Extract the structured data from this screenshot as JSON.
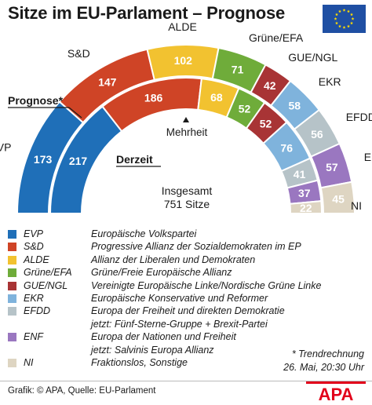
{
  "title": "Sitze im EU-Parlament – Prognose",
  "colors": {
    "EVP": "#1f6fb8",
    "S&D": "#cf4426",
    "ALDE": "#f2c230",
    "Grüne/EFA": "#6fac3a",
    "GUE/NGL": "#a83435",
    "EKR": "#7fb3dc",
    "EFDD": "#b6c3c8",
    "ENF": "#9a77c0",
    "NI": "#ded5c2",
    "eu_blue": "#1f4fa3",
    "eu_star": "#ffdd00",
    "apa_red": "#e2001a"
  },
  "labels": {
    "prognose": "Prognose*",
    "derzeit": "Derzeit",
    "mehrheit": "Mehrheit",
    "total_line1": "Insgesamt",
    "total_line2": "751 Sitze"
  },
  "chart_data": {
    "type": "parliament",
    "total_seats": 751,
    "parties": [
      "EVP",
      "S&D",
      "ALDE",
      "Grüne/EFA",
      "GUE/NGL",
      "EKR",
      "EFDD",
      "ENF",
      "NI"
    ],
    "series": [
      {
        "name": "Prognose*",
        "values": [
          173,
          147,
          102,
          71,
          42,
          58,
          56,
          57,
          45
        ]
      },
      {
        "name": "Derzeit",
        "values": [
          217,
          186,
          68,
          52,
          52,
          76,
          41,
          37,
          22
        ]
      }
    ]
  },
  "legend": [
    {
      "abbr": "EVP",
      "lines": [
        "Europäische Volkspartei"
      ]
    },
    {
      "abbr": "S&D",
      "lines": [
        "Progressive Allianz der Sozialdemokraten im EP"
      ]
    },
    {
      "abbr": "ALDE",
      "lines": [
        "Allianz der Liberalen und Demokraten"
      ]
    },
    {
      "abbr": "Grüne/EFA",
      "lines": [
        "Grüne/Freie Europäische Allianz"
      ]
    },
    {
      "abbr": "GUE/NGL",
      "lines": [
        "Vereinigte Europäische Linke/Nordische Grüne Linke"
      ]
    },
    {
      "abbr": "EKR",
      "lines": [
        "Europäische Konservative und Reformer"
      ]
    },
    {
      "abbr": "EFDD",
      "lines": [
        "Europa der Freiheit und direkten Demokratie",
        "jetzt: Fünf-Sterne-Gruppe + Brexit-Partei"
      ]
    },
    {
      "abbr": "ENF",
      "lines": [
        "Europa der Nationen und Freiheit",
        "jetzt: Salvinis Europa Allianz"
      ]
    },
    {
      "abbr": "NI",
      "lines": [
        "Fraktionslos, Sonstige"
      ]
    }
  ],
  "note": {
    "line1": "* Trendrechnung",
    "line2": "26. Mai, 20:30 Uhr"
  },
  "credit": "Grafik: © APA, Quelle: EU-Parlament",
  "logo_text": "APA"
}
